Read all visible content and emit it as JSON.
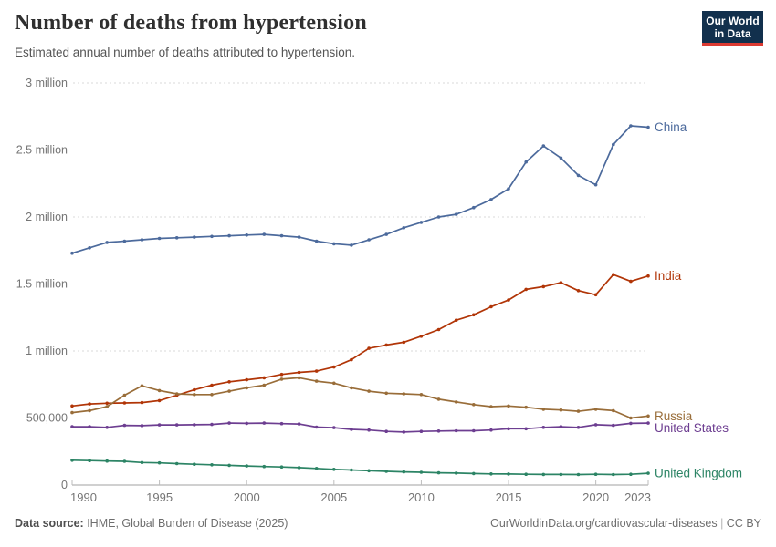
{
  "header": {
    "title": "Number of deaths from hypertension",
    "subtitle": "Estimated annual number of deaths attributed to hypertension.",
    "logo": {
      "line1": "Our World",
      "line2": "in Data",
      "bg_color": "#12304d",
      "accent_color": "#dc3a32"
    }
  },
  "footer": {
    "source_label": "Data source:",
    "source_text": " IHME, Global Burden of Disease (2025)",
    "url_text": "OurWorldinData.org/cardiovascular-diseases",
    "separator": " | ",
    "license_text": "CC BY"
  },
  "chart_data": {
    "type": "line",
    "title": "Number of deaths from hypertension",
    "subtitle": "Estimated annual number of deaths attributed to hypertension.",
    "unit": "deaths (values in millions)",
    "x": [
      1990,
      1991,
      1992,
      1993,
      1994,
      1995,
      1996,
      1997,
      1998,
      1999,
      2000,
      2001,
      2002,
      2003,
      2004,
      2005,
      2006,
      2007,
      2008,
      2009,
      2010,
      2011,
      2012,
      2013,
      2014,
      2015,
      2016,
      2017,
      2018,
      2019,
      2020,
      2021,
      2022,
      2023
    ],
    "series": [
      {
        "name": "China",
        "color": "#4C6A9C",
        "values": [
          1.73,
          1.77,
          1.81,
          1.82,
          1.83,
          1.84,
          1.845,
          1.85,
          1.855,
          1.86,
          1.865,
          1.87,
          1.86,
          1.85,
          1.82,
          1.8,
          1.79,
          1.83,
          1.87,
          1.92,
          1.96,
          2.0,
          2.02,
          2.07,
          2.13,
          2.21,
          2.41,
          2.53,
          2.44,
          2.31,
          2.24,
          2.54,
          2.68,
          2.67
        ]
      },
      {
        "name": "India",
        "color": "#B13507",
        "values": [
          0.59,
          0.605,
          0.61,
          0.612,
          0.615,
          0.63,
          0.67,
          0.71,
          0.745,
          0.77,
          0.785,
          0.8,
          0.825,
          0.84,
          0.85,
          0.88,
          0.935,
          1.02,
          1.045,
          1.065,
          1.11,
          1.16,
          1.23,
          1.27,
          1.33,
          1.38,
          1.46,
          1.48,
          1.51,
          1.45,
          1.42,
          1.57,
          1.52,
          1.56
        ]
      },
      {
        "name": "Russia",
        "color": "#996D39",
        "values": [
          0.54,
          0.555,
          0.585,
          0.67,
          0.74,
          0.705,
          0.68,
          0.675,
          0.675,
          0.7,
          0.725,
          0.745,
          0.79,
          0.8,
          0.775,
          0.76,
          0.725,
          0.7,
          0.685,
          0.68,
          0.675,
          0.64,
          0.62,
          0.6,
          0.585,
          0.59,
          0.58,
          0.565,
          0.56,
          0.55,
          0.565,
          0.555,
          0.5,
          0.515
        ]
      },
      {
        "name": "United States",
        "color": "#6D3E91",
        "values": [
          0.435,
          0.435,
          0.43,
          0.445,
          0.443,
          0.448,
          0.448,
          0.45,
          0.452,
          0.462,
          0.46,
          0.462,
          0.458,
          0.455,
          0.432,
          0.428,
          0.415,
          0.41,
          0.4,
          0.395,
          0.4,
          0.403,
          0.405,
          0.405,
          0.41,
          0.42,
          0.42,
          0.43,
          0.435,
          0.43,
          0.45,
          0.445,
          0.46,
          0.462
        ]
      },
      {
        "name": "United Kingdom",
        "color": "#2C8465",
        "values": [
          0.185,
          0.182,
          0.179,
          0.177,
          0.168,
          0.165,
          0.16,
          0.155,
          0.151,
          0.147,
          0.142,
          0.138,
          0.135,
          0.13,
          0.124,
          0.117,
          0.112,
          0.107,
          0.102,
          0.098,
          0.095,
          0.091,
          0.089,
          0.086,
          0.083,
          0.082,
          0.08,
          0.079,
          0.079,
          0.078,
          0.08,
          0.078,
          0.08,
          0.088
        ]
      }
    ],
    "ylim": [
      0,
      3
    ],
    "yticks": [
      {
        "v": 0,
        "label": "0"
      },
      {
        "v": 0.5,
        "label": "500,000"
      },
      {
        "v": 1,
        "label": "1 million"
      },
      {
        "v": 1.5,
        "label": "1.5 million"
      },
      {
        "v": 2,
        "label": "2 million"
      },
      {
        "v": 2.5,
        "label": "2.5 million"
      },
      {
        "v": 3,
        "label": "3 million"
      }
    ],
    "xticks": [
      1990,
      1995,
      2000,
      2005,
      2010,
      2015,
      2020,
      2023
    ],
    "grid": "horizontal dashed",
    "legend_position": "end-of-line labels"
  }
}
